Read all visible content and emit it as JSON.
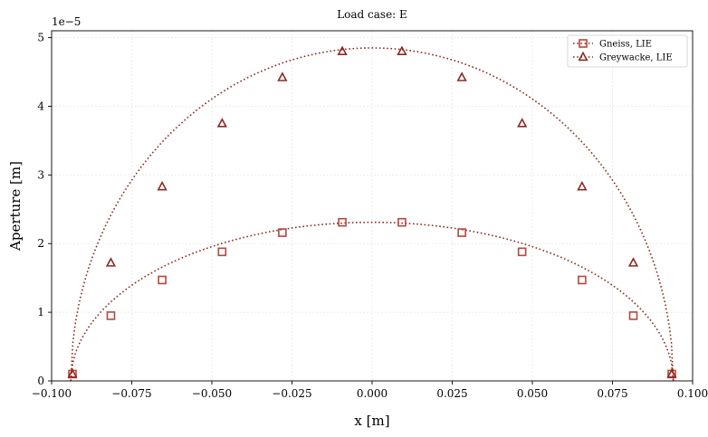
{
  "chart_data": {
    "type": "line",
    "title": "Load case: E",
    "xlabel": "x [m]",
    "ylabel": "Aperture [m]",
    "y_offset_text": "1e−5",
    "xlim": [
      -0.1,
      0.1
    ],
    "ylim": [
      0,
      5.1
    ],
    "x_ticks": [
      -0.1,
      -0.075,
      -0.05,
      -0.025,
      0.0,
      0.025,
      0.05,
      0.075,
      0.1
    ],
    "x_tick_labels": [
      "−0.100",
      "−0.075",
      "−0.050",
      "−0.025",
      "0.000",
      "0.025",
      "0.050",
      "0.075",
      "0.100"
    ],
    "y_ticks": [
      0,
      1,
      2,
      3,
      4,
      5
    ],
    "y_tick_labels": [
      "0",
      "1",
      "2",
      "3",
      "4",
      "5"
    ],
    "grid": true,
    "legend_position": "top-right",
    "half_length": 0.094,
    "series": [
      {
        "name": "Gneiss, LIE",
        "marker": "square",
        "color": "#b5483e",
        "line_color": "#8b2a22",
        "peak": 2.31,
        "x": [
          -0.0935,
          -0.0815,
          -0.0655,
          -0.0468,
          -0.028,
          -0.0093,
          0.0093,
          0.028,
          0.0468,
          0.0655,
          0.0815,
          0.0935
        ],
        "y": [
          0.1,
          0.95,
          1.47,
          1.88,
          2.16,
          2.31,
          2.31,
          2.16,
          1.88,
          1.47,
          0.95,
          0.1
        ]
      },
      {
        "name": "Greywacke, LIE",
        "marker": "triangle",
        "color": "#8b2a22",
        "line_color": "#8b2a22",
        "peak": 4.85,
        "x": [
          -0.0935,
          -0.0815,
          -0.0655,
          -0.0468,
          -0.028,
          -0.0093,
          0.0093,
          0.028,
          0.0468,
          0.0655,
          0.0815,
          0.0935
        ],
        "y": [
          0.1,
          1.72,
          2.83,
          3.75,
          4.42,
          4.8,
          4.8,
          4.42,
          3.75,
          2.83,
          1.72,
          0.1
        ]
      }
    ]
  }
}
